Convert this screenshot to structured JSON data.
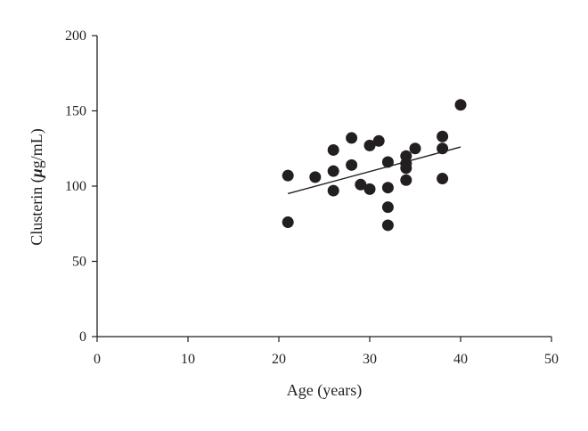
{
  "chart_data": {
    "type": "scatter",
    "title": "",
    "xlabel": "Age (years)",
    "ylabel_prefix": "Clusterin (",
    "ylabel_mu": "μ",
    "ylabel_suffix": "g/mL)",
    "xlim": [
      0,
      50
    ],
    "ylim": [
      0,
      200
    ],
    "x_ticks": [
      0,
      10,
      20,
      30,
      40,
      50
    ],
    "y_ticks": [
      0,
      50,
      100,
      150,
      200
    ],
    "grid": false,
    "legend": "none",
    "marker_color": "#231f20",
    "points": [
      {
        "x": 21,
        "y": 107
      },
      {
        "x": 21,
        "y": 76
      },
      {
        "x": 24,
        "y": 106
      },
      {
        "x": 26,
        "y": 124
      },
      {
        "x": 26,
        "y": 110
      },
      {
        "x": 26,
        "y": 97
      },
      {
        "x": 28,
        "y": 132
      },
      {
        "x": 28,
        "y": 114
      },
      {
        "x": 29,
        "y": 101
      },
      {
        "x": 30,
        "y": 127
      },
      {
        "x": 30,
        "y": 98
      },
      {
        "x": 31,
        "y": 130
      },
      {
        "x": 32,
        "y": 116
      },
      {
        "x": 32,
        "y": 99
      },
      {
        "x": 32,
        "y": 86
      },
      {
        "x": 32,
        "y": 74
      },
      {
        "x": 34,
        "y": 120
      },
      {
        "x": 34,
        "y": 115
      },
      {
        "x": 34,
        "y": 112
      },
      {
        "x": 34,
        "y": 104
      },
      {
        "x": 35,
        "y": 125
      },
      {
        "x": 38,
        "y": 133
      },
      {
        "x": 38,
        "y": 125
      },
      {
        "x": 38,
        "y": 105
      },
      {
        "x": 40,
        "y": 154
      }
    ],
    "trendline": {
      "x": [
        21,
        40
      ],
      "y": [
        95,
        126
      ]
    }
  }
}
